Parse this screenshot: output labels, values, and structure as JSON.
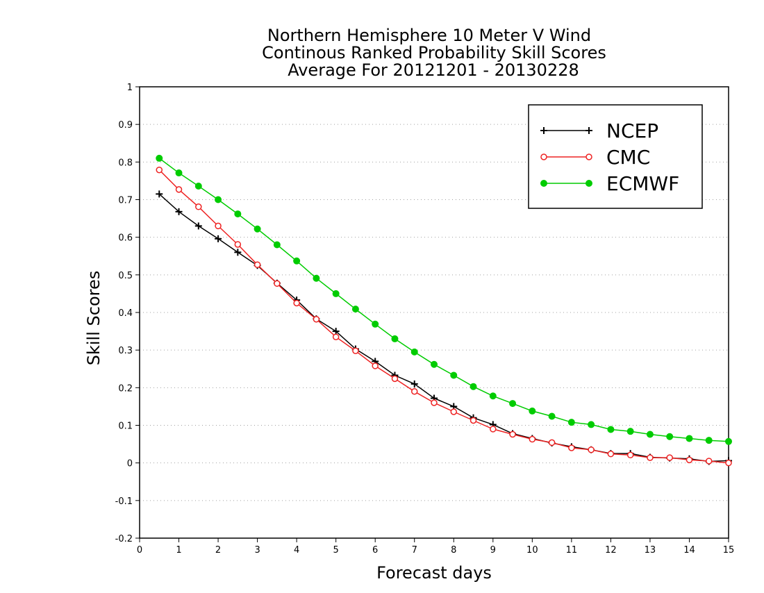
{
  "chart_data": {
    "type": "line",
    "title_lines": [
      "Northern Hemisphere 10 Meter V Wind",
      "Continous Ranked Probability Skill Scores",
      "Average For 20121201 - 20130228"
    ],
    "xlabel": "Forecast days",
    "ylabel": "Skill Scores",
    "xlim": [
      0,
      15
    ],
    "ylim": [
      -0.2,
      1
    ],
    "x_ticks": [
      0,
      1,
      2,
      3,
      4,
      5,
      6,
      7,
      8,
      9,
      10,
      11,
      12,
      13,
      14,
      15
    ],
    "y_ticks": [
      -0.2,
      -0.1,
      0,
      0.1,
      0.2,
      0.3,
      0.4,
      0.5,
      0.6,
      0.7,
      0.8,
      0.9,
      1
    ],
    "y_tick_labels": [
      "-0.2",
      "-0.1",
      "0",
      "0.1",
      "0.2",
      "0.3",
      "0.4",
      "0.5",
      "0.6",
      "0.7",
      "0.8",
      "0.9",
      "1"
    ],
    "grid": "horizontal dotted",
    "legend_position": "top-right",
    "x": [
      0.5,
      1,
      1.5,
      2,
      2.5,
      3,
      3.5,
      4,
      4.5,
      5,
      5.5,
      6,
      6.5,
      7,
      7.5,
      8,
      8.5,
      9,
      9.5,
      10,
      10.5,
      11,
      11.5,
      12,
      12.5,
      13,
      13.5,
      14,
      14.5,
      15
    ],
    "series": [
      {
        "name": "NCEP",
        "color": "#000000",
        "marker": "plus",
        "values": [
          0.715,
          0.668,
          0.63,
          0.596,
          0.56,
          0.525,
          0.478,
          0.433,
          0.383,
          0.35,
          0.303,
          0.27,
          0.233,
          0.21,
          0.172,
          0.15,
          0.12,
          0.102,
          0.078,
          0.065,
          0.053,
          0.043,
          0.035,
          0.025,
          0.025,
          0.015,
          0.013,
          0.011,
          0.004,
          0.006
        ]
      },
      {
        "name": "CMC",
        "color": "#ee2222",
        "marker": "open-circle",
        "values": [
          0.779,
          0.727,
          0.681,
          0.63,
          0.581,
          0.527,
          0.477,
          0.425,
          0.382,
          0.335,
          0.298,
          0.258,
          0.224,
          0.19,
          0.16,
          0.136,
          0.113,
          0.09,
          0.076,
          0.063,
          0.054,
          0.04,
          0.035,
          0.024,
          0.021,
          0.014,
          0.014,
          0.008,
          0.005,
          0.0
        ]
      },
      {
        "name": "ECMWF",
        "color": "#00cc00",
        "marker": "filled-circle",
        "values": [
          0.81,
          0.771,
          0.736,
          0.7,
          0.662,
          0.622,
          0.58,
          0.537,
          0.491,
          0.45,
          0.409,
          0.369,
          0.33,
          0.295,
          0.262,
          0.233,
          0.203,
          0.178,
          0.158,
          0.138,
          0.124,
          0.108,
          0.102,
          0.089,
          0.084,
          0.076,
          0.07,
          0.065,
          0.06,
          0.057
        ]
      }
    ]
  }
}
